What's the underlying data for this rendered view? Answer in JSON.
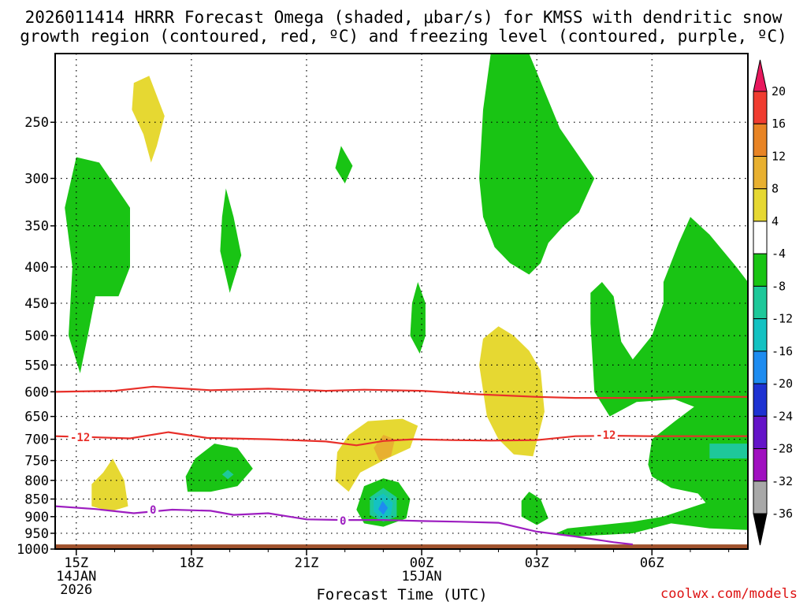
{
  "chart_data": {
    "type": "heatmap",
    "title": "2026011414 HRRR Forecast Omega (shaded, μbar/s) for KMSS with dendritic snow",
    "subtitle": "growth region (contoured, red, ºC) and freezing level (contoured, purple, ºC)",
    "xlabel": "Forecast Time (UTC)",
    "ylabel": "",
    "x_ticks": [
      {
        "t": 0,
        "label": "15Z",
        "line2": "14JAN",
        "line3": "2026"
      },
      {
        "t": 3,
        "label": "18Z",
        "line2": "",
        "line3": ""
      },
      {
        "t": 6,
        "label": "21Z",
        "line2": "",
        "line3": ""
      },
      {
        "t": 9,
        "label": "00Z",
        "line2": "15JAN",
        "line3": ""
      },
      {
        "t": 12,
        "label": "03Z",
        "line2": "",
        "line3": ""
      },
      {
        "t": 15,
        "label": "06Z",
        "line2": "",
        "line3": ""
      }
    ],
    "xlim": [
      -0.55,
      17.5
    ],
    "y_ticks": [
      250,
      300,
      350,
      400,
      450,
      500,
      550,
      600,
      650,
      700,
      750,
      800,
      850,
      900,
      950,
      1000
    ],
    "ylim": [
      200,
      1000
    ],
    "yscale": "log",
    "grid": true,
    "colorbar": {
      "levels": [
        20,
        16,
        12,
        8,
        4,
        -4,
        -8,
        -12,
        -16,
        -20,
        -24,
        -28,
        -32,
        -36
      ],
      "colors": [
        "#e8185d",
        "#f03c30",
        "#e88425",
        "#e8b030",
        "#e6d832",
        "#ffffff",
        "#19c414",
        "#1ec89a",
        "#14c2c2",
        "#1e8cf0",
        "#1e32d2",
        "#6414c8",
        "#a010c0",
        "#a8a8a8",
        "#000000"
      ]
    },
    "shaded_regions": [
      {
        "name": "green-a",
        "fill": "#19c414",
        "pts": [
          [
            0,
            280
          ],
          [
            0.6,
            285
          ],
          [
            1.4,
            330
          ],
          [
            1.4,
            400
          ],
          [
            1.1,
            440
          ],
          [
            0.5,
            440
          ],
          [
            0.3,
            500
          ],
          [
            0.1,
            565
          ],
          [
            -0.2,
            500
          ],
          [
            -0.1,
            400
          ],
          [
            -0.3,
            330
          ]
        ]
      },
      {
        "name": "yellow-a",
        "fill": "#e6d832",
        "pts": [
          [
            1.5,
            220
          ],
          [
            1.9,
            215
          ],
          [
            2.3,
            245
          ],
          [
            2.1,
            270
          ],
          [
            1.95,
            285
          ],
          [
            1.75,
            260
          ],
          [
            1.45,
            240
          ]
        ]
      },
      {
        "name": "green-b",
        "fill": "#19c414",
        "pts": [
          [
            3.9,
            310
          ],
          [
            4.1,
            340
          ],
          [
            4.3,
            385
          ],
          [
            4.0,
            435
          ],
          [
            3.75,
            380
          ],
          [
            3.8,
            340
          ]
        ]
      },
      {
        "name": "green-c",
        "fill": "#19c414",
        "pts": [
          [
            6.9,
            270
          ],
          [
            7.2,
            288
          ],
          [
            7.0,
            305
          ],
          [
            6.75,
            290
          ]
        ]
      },
      {
        "name": "green-d",
        "fill": "#19c414",
        "pts": [
          [
            8.9,
            420
          ],
          [
            9.1,
            450
          ],
          [
            9.1,
            500
          ],
          [
            8.95,
            530
          ],
          [
            8.7,
            500
          ],
          [
            8.75,
            450
          ]
        ]
      },
      {
        "name": "green-e",
        "fill": "#19c414",
        "pts": [
          [
            10.8,
            200
          ],
          [
            11.8,
            200
          ],
          [
            12.6,
            255
          ],
          [
            13.5,
            300
          ],
          [
            13.1,
            335
          ],
          [
            12.7,
            350
          ],
          [
            12.3,
            370
          ],
          [
            12.1,
            395
          ],
          [
            11.8,
            410
          ],
          [
            11.3,
            395
          ],
          [
            10.9,
            375
          ],
          [
            10.6,
            340
          ],
          [
            10.5,
            300
          ],
          [
            10.6,
            240
          ]
        ]
      },
      {
        "name": "green-f",
        "fill": "#19c414",
        "pts": [
          [
            16.0,
            340
          ],
          [
            16.5,
            360
          ],
          [
            17.2,
            400
          ],
          [
            17.5,
            420
          ],
          [
            17.5,
            940
          ],
          [
            16.5,
            935
          ],
          [
            15.5,
            920
          ],
          [
            14.5,
            950
          ],
          [
            13.0,
            960
          ],
          [
            12.5,
            950
          ],
          [
            12.8,
            935
          ],
          [
            14.5,
            915
          ],
          [
            15.3,
            900
          ],
          [
            16.4,
            860
          ],
          [
            16.2,
            835
          ],
          [
            15.5,
            820
          ],
          [
            15.0,
            790
          ],
          [
            14.9,
            760
          ],
          [
            15.0,
            700
          ],
          [
            15.6,
            660
          ],
          [
            16.1,
            630
          ],
          [
            15.6,
            615
          ],
          [
            14.6,
            620
          ],
          [
            13.9,
            650
          ],
          [
            13.5,
            600
          ],
          [
            13.4,
            480
          ],
          [
            13.4,
            435
          ],
          [
            13.7,
            420
          ],
          [
            14.0,
            440
          ],
          [
            14.2,
            510
          ],
          [
            14.5,
            540
          ],
          [
            15.0,
            500
          ],
          [
            15.3,
            450
          ],
          [
            15.3,
            420
          ],
          [
            15.7,
            370
          ]
        ]
      },
      {
        "name": "teal-f",
        "fill": "#1ec89a",
        "pts": [
          [
            16.5,
            710
          ],
          [
            17.5,
            710
          ],
          [
            17.5,
            745
          ],
          [
            16.5,
            745
          ]
        ]
      },
      {
        "name": "yellow-b",
        "fill": "#e6d832",
        "pts": [
          [
            11.0,
            485
          ],
          [
            11.4,
            500
          ],
          [
            11.8,
            525
          ],
          [
            12.1,
            560
          ],
          [
            12.2,
            640
          ],
          [
            11.9,
            740
          ],
          [
            11.4,
            735
          ],
          [
            11.0,
            700
          ],
          [
            10.7,
            650
          ],
          [
            10.5,
            550
          ],
          [
            10.6,
            505
          ]
        ]
      },
      {
        "name": "yellow-c",
        "fill": "#e6d832",
        "pts": [
          [
            7.6,
            660
          ],
          [
            8.5,
            655
          ],
          [
            8.9,
            670
          ],
          [
            8.7,
            720
          ],
          [
            8.1,
            745
          ],
          [
            7.4,
            780
          ],
          [
            7.1,
            830
          ],
          [
            6.75,
            800
          ],
          [
            6.8,
            730
          ],
          [
            7.1,
            690
          ]
        ]
      },
      {
        "name": "orange-c",
        "fill": "#e8b030",
        "pts": [
          [
            8.0,
            690
          ],
          [
            8.3,
            700
          ],
          [
            8.2,
            740
          ],
          [
            7.9,
            750
          ],
          [
            7.75,
            720
          ]
        ]
      },
      {
        "name": "green-g",
        "fill": "#19c414",
        "pts": [
          [
            3.6,
            710
          ],
          [
            4.2,
            720
          ],
          [
            4.6,
            770
          ],
          [
            4.2,
            815
          ],
          [
            3.5,
            830
          ],
          [
            2.9,
            830
          ],
          [
            2.85,
            790
          ],
          [
            3.1,
            745
          ]
        ]
      },
      {
        "name": "teal-g",
        "fill": "#1ec89a",
        "pts": [
          [
            3.95,
            773
          ],
          [
            4.1,
            785
          ],
          [
            3.95,
            797
          ],
          [
            3.8,
            785
          ]
        ]
      },
      {
        "name": "yellow-d",
        "fill": "#e6d832",
        "pts": [
          [
            0.95,
            745
          ],
          [
            1.25,
            800
          ],
          [
            1.35,
            870
          ],
          [
            0.9,
            885
          ],
          [
            0.4,
            870
          ],
          [
            0.4,
            810
          ],
          [
            0.7,
            780
          ]
        ]
      },
      {
        "name": "green-h",
        "fill": "#19c414",
        "pts": [
          [
            8.0,
            795
          ],
          [
            8.4,
            805
          ],
          [
            8.7,
            850
          ],
          [
            8.6,
            905
          ],
          [
            8.0,
            930
          ],
          [
            7.5,
            920
          ],
          [
            7.3,
            880
          ],
          [
            7.5,
            815
          ]
        ]
      },
      {
        "name": "teal-h",
        "fill": "#1ec89a",
        "pts": [
          [
            8.0,
            820
          ],
          [
            8.35,
            845
          ],
          [
            8.35,
            900
          ],
          [
            8.0,
            915
          ],
          [
            7.65,
            895
          ],
          [
            7.65,
            845
          ]
        ]
      },
      {
        "name": "cyan-h",
        "fill": "#14c2c2",
        "pts": [
          [
            8.0,
            835
          ],
          [
            8.25,
            860
          ],
          [
            8.2,
            895
          ],
          [
            7.95,
            905
          ],
          [
            7.75,
            885
          ],
          [
            7.75,
            850
          ]
        ]
      },
      {
        "name": "blue-h",
        "fill": "#1e8cf0",
        "pts": [
          [
            7.98,
            855
          ],
          [
            8.12,
            875
          ],
          [
            8.0,
            895
          ],
          [
            7.87,
            878
          ]
        ]
      },
      {
        "name": "green-i",
        "fill": "#19c414",
        "pts": [
          [
            11.8,
            830
          ],
          [
            12.1,
            850
          ],
          [
            12.3,
            905
          ],
          [
            12.0,
            925
          ],
          [
            11.6,
            900
          ],
          [
            11.6,
            855
          ]
        ]
      }
    ],
    "contours": [
      {
        "name": "dgz-minus-10",
        "color": "#e8302a",
        "label": "",
        "pts": [
          [
            -0.55,
            600
          ],
          [
            1,
            598
          ],
          [
            2,
            590
          ],
          [
            3.5,
            597
          ],
          [
            5,
            594
          ],
          [
            6.5,
            598
          ],
          [
            7.5,
            596
          ],
          [
            9,
            598
          ],
          [
            10.5,
            605
          ],
          [
            12,
            610
          ],
          [
            13,
            612
          ],
          [
            14,
            612
          ],
          [
            15,
            612
          ],
          [
            16,
            610
          ],
          [
            17.5,
            610
          ]
        ]
      },
      {
        "name": "dgz-minus-12",
        "color": "#e8302a",
        "label": "-12",
        "label_t": 0.1,
        "label_p": 695,
        "label_t2": 13.8,
        "label_p2": 690,
        "pts": [
          [
            -0.55,
            693
          ],
          [
            0.3,
            695
          ],
          [
            1.4,
            698
          ],
          [
            2.4,
            684
          ],
          [
            3.4,
            697
          ],
          [
            5,
            700
          ],
          [
            6.5,
            705
          ],
          [
            7.3,
            714
          ],
          [
            8.0,
            704
          ],
          [
            8.8,
            700
          ],
          [
            9.8,
            702
          ],
          [
            10.8,
            703
          ],
          [
            12,
            702
          ],
          [
            13,
            693
          ],
          [
            14,
            692
          ],
          [
            15,
            693
          ],
          [
            16,
            693
          ],
          [
            17.5,
            693
          ]
        ]
      },
      {
        "name": "freezing-level",
        "color": "#9d1ec0",
        "label": "0",
        "label_t": 2.0,
        "label_p": 880,
        "label_t2": 6.95,
        "label_p2": 912,
        "pts": [
          [
            -0.55,
            870
          ],
          [
            0.5,
            878
          ],
          [
            1.5,
            890
          ],
          [
            2.5,
            880
          ],
          [
            3.5,
            883
          ],
          [
            4.1,
            895
          ],
          [
            5,
            890
          ],
          [
            6,
            908
          ],
          [
            7,
            910
          ],
          [
            8,
            910
          ],
          [
            9,
            913
          ],
          [
            10,
            915
          ],
          [
            11,
            918
          ],
          [
            12,
            945
          ],
          [
            13,
            960
          ],
          [
            14,
            978
          ],
          [
            14.5,
            985
          ]
        ]
      }
    ],
    "ground_pressure": 985
  },
  "text": {
    "colorbar_labels": [
      "20",
      "16",
      "12",
      "8",
      "4",
      "-4",
      "-8",
      "-12",
      "-16",
      "-20",
      "-24",
      "-28",
      "-32",
      "-36"
    ],
    "credit": "coolwx.com/models"
  }
}
